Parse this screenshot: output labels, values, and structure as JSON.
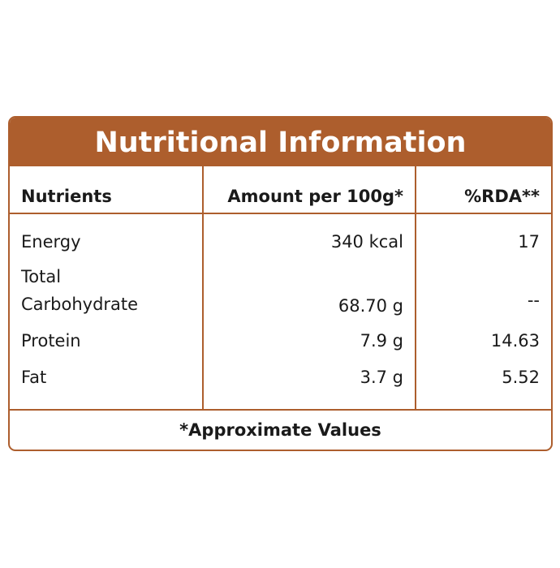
{
  "title": "Nutritional Information",
  "table": {
    "header": [
      "Nutrients",
      "Amount per 100g*",
      "%RDA**"
    ],
    "rows": [
      [
        "Energy",
        "340 kcal",
        "17"
      ],
      [
        "Total Carbohydrate",
        "68.70 g",
        "--"
      ],
      [
        "Protein",
        "7.9 g",
        "14.63"
      ],
      [
        "Fat",
        "3.7 g",
        "5.52"
      ]
    ]
  },
  "footer": "*Approximate Values"
}
